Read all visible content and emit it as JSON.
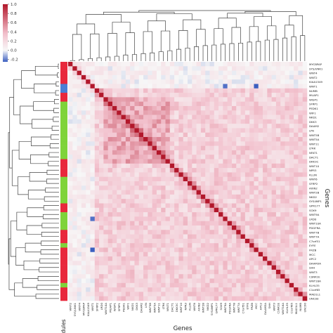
{
  "chart_data": {
    "type": "heatmap",
    "title": "",
    "xlabel": "Genes",
    "ylabel": "Genes",
    "module_label": "Modules",
    "colorbar": {
      "ticks": [
        1.0,
        0.8,
        0.6,
        0.4,
        0.2,
        0.0,
        -0.2
      ],
      "tick_labels": [
        "1.0",
        "0.8",
        "0.6",
        "0.4",
        "0.2",
        "0.0",
        "-0.2"
      ],
      "vmin": -0.25,
      "vmax": 1.0,
      "colors": {
        "neg": "#3b5fc0",
        "zero": "#f7f7f7",
        "mid": "#f3c3cf",
        "pos": "#b2182b"
      }
    },
    "row_labels": [
      "MYCBPAP",
      "SYS/UNK1",
      "WNT4",
      "WNT2",
      "KIAA1549",
      "WNT1",
      "NUMB",
      "MUAP1",
      "WISP1",
      "SFRP1",
      "PEDK1",
      "WIF1",
      "NKD1",
      "DKK3",
      "DAAM2",
      "LYN",
      "WNT5B",
      "WNT5A",
      "WNT11",
      "LTRK",
      "NFAT1",
      "DACT1",
      "DKK3C",
      "WNT10",
      "NPR3",
      "KLLIN",
      "WNT6",
      "SFRP2",
      "AXIN2",
      "WNT2B",
      "NKD2",
      "SYS4MP1",
      "GPR177",
      "SOX9",
      "WNT9A",
      "LRD0",
      "WNT10A",
      "PDGFRA",
      "WNT7B",
      "WNT7A",
      "C7orf51",
      "EYFE",
      "FRZB",
      "MCC",
      "APC2",
      "DAAM3A",
      "SHH",
      "WNT3",
      "CSNK1E",
      "WNT16A",
      "KLHL35",
      "C1orf65",
      "MAD1L1",
      "UNC00"
    ],
    "col_labels": [
      "WNT2",
      "SYS/UNK1",
      "WNT4",
      "MYCBPAP",
      "KIAA1549",
      "WNT1",
      "SFRP2",
      "LRD0",
      "WNT10A",
      "MUAP1",
      "WISP1",
      "SFRP1",
      "PEDK1",
      "WIF1",
      "NKD1",
      "DKK3",
      "DAAM2",
      "LYN",
      "WNT5B",
      "WNT5A",
      "WNT11",
      "LTRK",
      "NFAT1",
      "DACT1",
      "DKK3C",
      "WNT10",
      "NPR3",
      "KLLIN",
      "WNT6",
      "AXIN2",
      "WNT2B",
      "NKD2",
      "SYS4MP1",
      "GPR177",
      "SOX9",
      "WNT9A",
      "PDGFRA",
      "WNT7B",
      "WNT7A",
      "C7orf51",
      "EYFE",
      "FRZB",
      "MCC",
      "APC2",
      "DAAM3A",
      "SHH",
      "WNT3",
      "CSNK1E",
      "WNT16A",
      "KLHL35",
      "C1orf65",
      "MAD1L1",
      "NUMB",
      "UNC00"
    ],
    "module_colors": [
      "#e8283c",
      "#e8283c",
      "#e8283c",
      "#e8283c",
      "#e8283c",
      "#4a7fd4",
      "#4a7fd4",
      "#e8283c",
      "#e8283c",
      "#7fd33a",
      "#7fd33a",
      "#7fd33a",
      "#7fd33a",
      "#7fd33a",
      "#7fd33a",
      "#7fd33a",
      "#7fd33a",
      "#7fd33a",
      "#7fd33a",
      "#7fd33a",
      "#7fd33a",
      "#7fd33a",
      "#e8283c",
      "#e8283c",
      "#e8283c",
      "#e8283c",
      "#7fd33a",
      "#7fd33a",
      "#7fd33a",
      "#7fd33a",
      "#7fd33a",
      "#7fd33a",
      "#e8283c",
      "#e8283c",
      "#7fd33a",
      "#7fd33a",
      "#7fd33a",
      "#7fd33a",
      "#e8283c",
      "#e8283c",
      "#e8283c",
      "#7fd33a",
      "#e8283c",
      "#e8283c",
      "#e8283c",
      "#e8283c",
      "#e8283c",
      "#e8283c",
      "#e8283c",
      "#e8283c",
      "#7fd33a",
      "#e8283c",
      "#e8283c",
      "#e8283c"
    ]
  }
}
